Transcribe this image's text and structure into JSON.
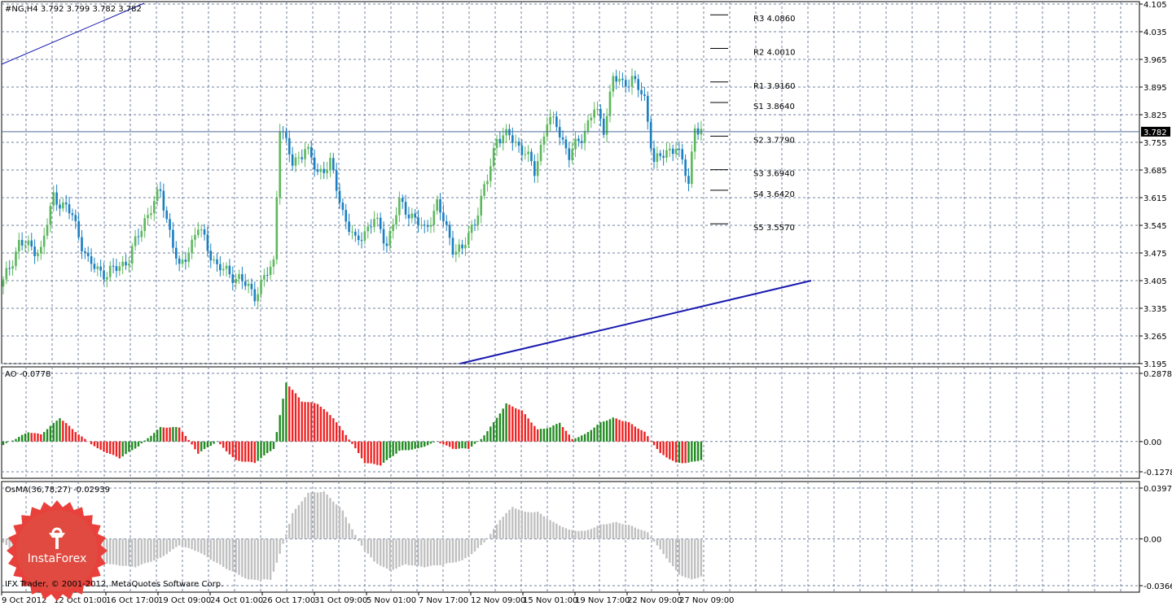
{
  "main_panel": {
    "header": "#NG,H4  3.792 3.799 3.782 3.782",
    "current_price_label": "3.782",
    "y_ticks": [
      "4.105",
      "4.035",
      "3.965",
      "3.895",
      "3.825",
      "3.755",
      "3.685",
      "3.615",
      "3.545",
      "3.475",
      "3.405",
      "3.335",
      "3.265",
      "3.195"
    ]
  },
  "pivot_levels": [
    {
      "label": "R3 4.0860",
      "value": 4.086
    },
    {
      "label": "R2 4.0010",
      "value": 4.001
    },
    {
      "label": "R1 3.9160",
      "value": 3.916
    },
    {
      "label": "S1 3.8640",
      "value": 3.864
    },
    {
      "label": "S2 3.7790",
      "value": 3.779
    },
    {
      "label": "S3 3.6940",
      "value": 3.694
    },
    {
      "label": "S4 3.6420",
      "value": 3.642
    },
    {
      "label": "S5 3.5570",
      "value": 3.557
    }
  ],
  "ao_panel": {
    "header": "AO -0.0778",
    "y_ticks": [
      "0.2878",
      "0.00",
      "-0.1278"
    ]
  },
  "osma_panel": {
    "header": "OsMA(36,78,27) -0.02939",
    "y_ticks": [
      "0.03976",
      "0.00",
      "-0.03665"
    ]
  },
  "x_ticks": [
    "9 Oct 2012",
    "12 Oct 01:00",
    "16 Oct 17:00",
    "19 Oct 09:00",
    "24 Oct 01:00",
    "26 Oct 17:00",
    "31 Oct 09:00",
    "5 Nov 01:00",
    "7 Nov 17:00",
    "12 Nov 09:00",
    "15 Nov 01:00",
    "19 Nov 17:00",
    "22 Nov 09:00",
    "27 Nov 09:00"
  ],
  "footer": {
    "copyright": "IFX Trader, © 2001-2012, MetaQuotes Software Corp."
  },
  "logo": {
    "text": "InstaForex",
    "color": "#e8403a"
  },
  "colors": {
    "bull": "#5cb85c",
    "bear": "#1a7fc1",
    "ao_up": "#228b22",
    "ao_down": "#ee2222",
    "osma": "#c0c0c0",
    "trendline": "#1a1ab0"
  },
  "chart_data": [
    {
      "type": "candlestick",
      "title": "#NG,H4",
      "ylim": [
        3.195,
        4.105
      ],
      "close_anchors": [
        [
          0,
          3.4
        ],
        [
          5,
          3.5
        ],
        [
          12,
          3.48
        ],
        [
          16,
          3.62
        ],
        [
          22,
          3.57
        ],
        [
          27,
          3.45
        ],
        [
          33,
          3.42
        ],
        [
          40,
          3.46
        ],
        [
          45,
          3.56
        ],
        [
          50,
          3.63
        ],
        [
          56,
          3.43
        ],
        [
          62,
          3.54
        ],
        [
          68,
          3.44
        ],
        [
          75,
          3.41
        ],
        [
          80,
          3.37
        ],
        [
          86,
          3.45
        ],
        [
          88,
          3.8
        ],
        [
          92,
          3.7
        ],
        [
          96,
          3.74
        ],
        [
          100,
          3.68
        ],
        [
          104,
          3.7
        ],
        [
          108,
          3.58
        ],
        [
          112,
          3.5
        ],
        [
          118,
          3.56
        ],
        [
          122,
          3.5
        ],
        [
          126,
          3.6
        ],
        [
          130,
          3.57
        ],
        [
          134,
          3.53
        ],
        [
          138,
          3.6
        ],
        [
          143,
          3.49
        ],
        [
          146,
          3.48
        ],
        [
          150,
          3.56
        ],
        [
          154,
          3.66
        ],
        [
          157,
          3.77
        ],
        [
          161,
          3.77
        ],
        [
          166,
          3.73
        ],
        [
          169,
          3.68
        ],
        [
          173,
          3.81
        ],
        [
          176,
          3.8
        ],
        [
          180,
          3.72
        ],
        [
          184,
          3.77
        ],
        [
          188,
          3.84
        ],
        [
          191,
          3.79
        ],
        [
          194,
          3.92
        ],
        [
          197,
          3.9
        ],
        [
          200,
          3.92
        ],
        [
          204,
          3.86
        ],
        [
          207,
          3.71
        ],
        [
          210,
          3.72
        ],
        [
          214,
          3.75
        ],
        [
          218,
          3.65
        ],
        [
          220,
          3.8
        ],
        [
          222,
          3.782
        ]
      ]
    },
    {
      "type": "bar",
      "title": "AO",
      "ylim": [
        -0.1278,
        0.2878
      ],
      "anchors": [
        [
          0,
          -0.015
        ],
        [
          8,
          0.04
        ],
        [
          12,
          0.03
        ],
        [
          18,
          0.1
        ],
        [
          24,
          0.03
        ],
        [
          30,
          -0.03
        ],
        [
          37,
          -0.07
        ],
        [
          43,
          -0.02
        ],
        [
          50,
          0.06
        ],
        [
          56,
          0.06
        ],
        [
          62,
          -0.05
        ],
        [
          68,
          0.0
        ],
        [
          74,
          -0.08
        ],
        [
          80,
          -0.09
        ],
        [
          86,
          -0.03
        ],
        [
          90,
          0.25
        ],
        [
          95,
          0.17
        ],
        [
          100,
          0.16
        ],
        [
          105,
          0.1
        ],
        [
          110,
          0.01
        ],
        [
          115,
          -0.09
        ],
        [
          120,
          -0.1
        ],
        [
          126,
          -0.04
        ],
        [
          132,
          -0.03
        ],
        [
          138,
          0.0
        ],
        [
          143,
          -0.03
        ],
        [
          148,
          -0.03
        ],
        [
          152,
          0.01
        ],
        [
          156,
          0.08
        ],
        [
          160,
          0.16
        ],
        [
          165,
          0.13
        ],
        [
          170,
          0.05
        ],
        [
          174,
          0.06
        ],
        [
          177,
          0.08
        ],
        [
          181,
          0.01
        ],
        [
          185,
          0.03
        ],
        [
          190,
          0.08
        ],
        [
          194,
          0.1
        ],
        [
          199,
          0.08
        ],
        [
          204,
          0.04
        ],
        [
          209,
          -0.05
        ],
        [
          214,
          -0.09
        ],
        [
          218,
          -0.09
        ],
        [
          222,
          -0.0778
        ]
      ]
    },
    {
      "type": "bar",
      "title": "OsMA(36,78,27)",
      "ylim": [
        -0.03665,
        0.03976
      ],
      "anchors": [
        [
          0,
          -0.003
        ],
        [
          8,
          -0.02
        ],
        [
          15,
          -0.028
        ],
        [
          22,
          -0.025
        ],
        [
          28,
          -0.015
        ],
        [
          34,
          -0.02
        ],
        [
          42,
          -0.022
        ],
        [
          50,
          -0.015
        ],
        [
          56,
          -0.005
        ],
        [
          62,
          -0.01
        ],
        [
          70,
          -0.022
        ],
        [
          78,
          -0.032
        ],
        [
          85,
          -0.032
        ],
        [
          88,
          -0.012
        ],
        [
          92,
          0.02
        ],
        [
          97,
          0.036
        ],
        [
          102,
          0.037
        ],
        [
          108,
          0.022
        ],
        [
          113,
          -0.002
        ],
        [
          118,
          -0.018
        ],
        [
          123,
          -0.025
        ],
        [
          128,
          -0.02
        ],
        [
          134,
          -0.022
        ],
        [
          140,
          -0.02
        ],
        [
          146,
          -0.017
        ],
        [
          150,
          -0.01
        ],
        [
          154,
          0.0
        ],
        [
          158,
          0.015
        ],
        [
          162,
          0.025
        ],
        [
          166,
          0.021
        ],
        [
          170,
          0.021
        ],
        [
          175,
          0.013
        ],
        [
          180,
          0.007
        ],
        [
          185,
          0.006
        ],
        [
          190,
          0.011
        ],
        [
          195,
          0.013
        ],
        [
          200,
          0.01
        ],
        [
          205,
          0.005
        ],
        [
          210,
          -0.012
        ],
        [
          215,
          -0.028
        ],
        [
          219,
          -0.032
        ],
        [
          222,
          -0.02939
        ]
      ]
    }
  ]
}
